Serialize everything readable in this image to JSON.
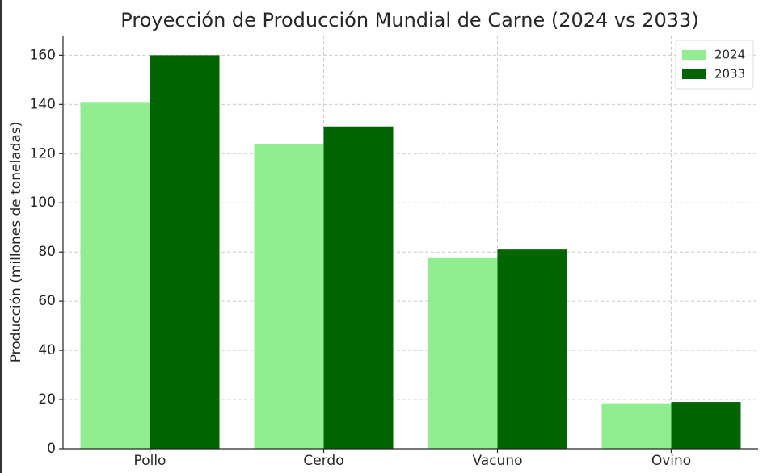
{
  "chart_data": {
    "type": "bar",
    "title": "Proyección de Producción Mundial de Carne (2024 vs 2033)",
    "y_label": "Producción (millones de toneladas)",
    "categories": [
      "Pollo",
      "Cerdo",
      "Vacuno",
      "Ovino"
    ],
    "series": [
      {
        "name": "2024",
        "color": "#90ee90",
        "values": [
          141,
          124,
          77.5,
          18.5
        ]
      },
      {
        "name": "2033",
        "color": "#006400",
        "values": [
          160,
          131,
          81,
          19
        ]
      }
    ],
    "ylim": [
      0,
      168
    ],
    "yticks": [
      0,
      20,
      40,
      60,
      80,
      100,
      120,
      140,
      160
    ],
    "grid": true,
    "legend": "upper right"
  }
}
